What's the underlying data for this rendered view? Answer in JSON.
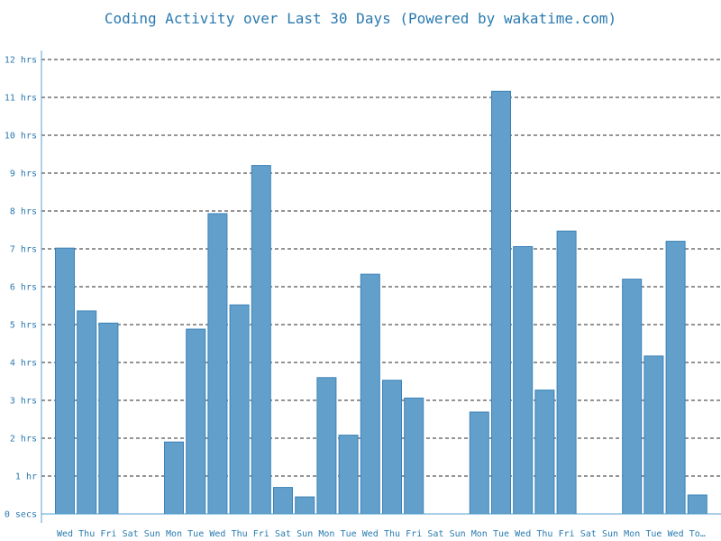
{
  "chart_data": {
    "type": "bar",
    "title": "Coding Activity over Last 30 Days (Powered by wakatime.com)",
    "categories": [
      "Wed",
      "Thu",
      "Fri",
      "Sat",
      "Sun",
      "Mon",
      "Tue",
      "Wed",
      "Thu",
      "Fri",
      "Sat",
      "Sun",
      "Mon",
      "Tue",
      "Wed",
      "Thu",
      "Fri",
      "Sat",
      "Sun",
      "Mon",
      "Tue",
      "Wed",
      "Thu",
      "Fri",
      "Sat",
      "Sun",
      "Mon",
      "Tue",
      "Wed",
      "To…"
    ],
    "values": [
      7.02,
      5.36,
      5.04,
      0,
      0,
      1.9,
      4.88,
      7.93,
      5.52,
      9.2,
      0.7,
      0.45,
      3.6,
      2.08,
      6.33,
      3.53,
      3.06,
      0,
      0,
      2.69,
      11.16,
      7.06,
      3.27,
      7.47,
      0,
      0,
      6.2,
      4.17,
      7.2,
      0.5
    ],
    "y_unit": "hours",
    "ylim": [
      0,
      12
    ],
    "yticks": [
      {
        "value": 0,
        "label": "0 secs"
      },
      {
        "value": 1,
        "label": "1 hr"
      },
      {
        "value": 2,
        "label": "2 hrs"
      },
      {
        "value": 3,
        "label": "3 hrs"
      },
      {
        "value": 4,
        "label": "4 hrs"
      },
      {
        "value": 5,
        "label": "5 hrs"
      },
      {
        "value": 6,
        "label": "6 hrs"
      },
      {
        "value": 7,
        "label": "7 hrs"
      },
      {
        "value": 8,
        "label": "8 hrs"
      },
      {
        "value": 9,
        "label": "9 hrs"
      },
      {
        "value": 10,
        "label": "10 hrs"
      },
      {
        "value": 11,
        "label": "11 hrs"
      },
      {
        "value": 12,
        "label": "12 hrs"
      }
    ],
    "grid": true,
    "colors": {
      "bar_fill": "#62a0cb",
      "bar_stroke": "#3a82b8",
      "text": "#2a7ab0",
      "grid": "#555555"
    }
  }
}
